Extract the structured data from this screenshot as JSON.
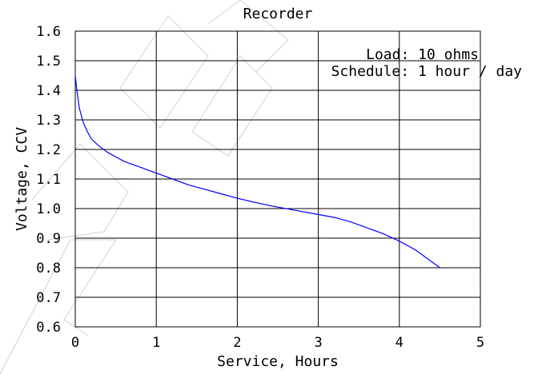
{
  "chart_data": {
    "type": "line",
    "title": "Recorder",
    "xlabel": "Service, Hours",
    "ylabel": "Voltage, CCV",
    "xlim": [
      0,
      5
    ],
    "ylim": [
      0.6,
      1.6
    ],
    "x_ticks": [
      "0",
      "1",
      "2",
      "3",
      "4",
      "5"
    ],
    "y_ticks": [
      "0.6",
      "0.7",
      "0.8",
      "0.9",
      "1.0",
      "1.1",
      "1.2",
      "1.3",
      "1.4",
      "1.5",
      "1.6"
    ],
    "grid": true,
    "annotations": [
      "Load: 10 ohms",
      "Schedule: 1 hour / day"
    ],
    "series": [
      {
        "color": "#0000ff",
        "x": [
          0,
          0.02,
          0.05,
          0.1,
          0.15,
          0.2,
          0.3,
          0.4,
          0.5,
          0.6,
          0.8,
          1.0,
          1.2,
          1.4,
          1.6,
          1.8,
          2.0,
          2.2,
          2.4,
          2.6,
          2.8,
          3.0,
          3.2,
          3.4,
          3.6,
          3.8,
          4.0,
          4.2,
          4.4,
          4.5
        ],
        "y": [
          1.45,
          1.4,
          1.34,
          1.29,
          1.26,
          1.235,
          1.21,
          1.19,
          1.175,
          1.16,
          1.14,
          1.12,
          1.1,
          1.08,
          1.065,
          1.05,
          1.035,
          1.022,
          1.01,
          1.0,
          0.99,
          0.98,
          0.97,
          0.955,
          0.935,
          0.915,
          0.89,
          0.86,
          0.82,
          0.8
        ]
      }
    ]
  }
}
